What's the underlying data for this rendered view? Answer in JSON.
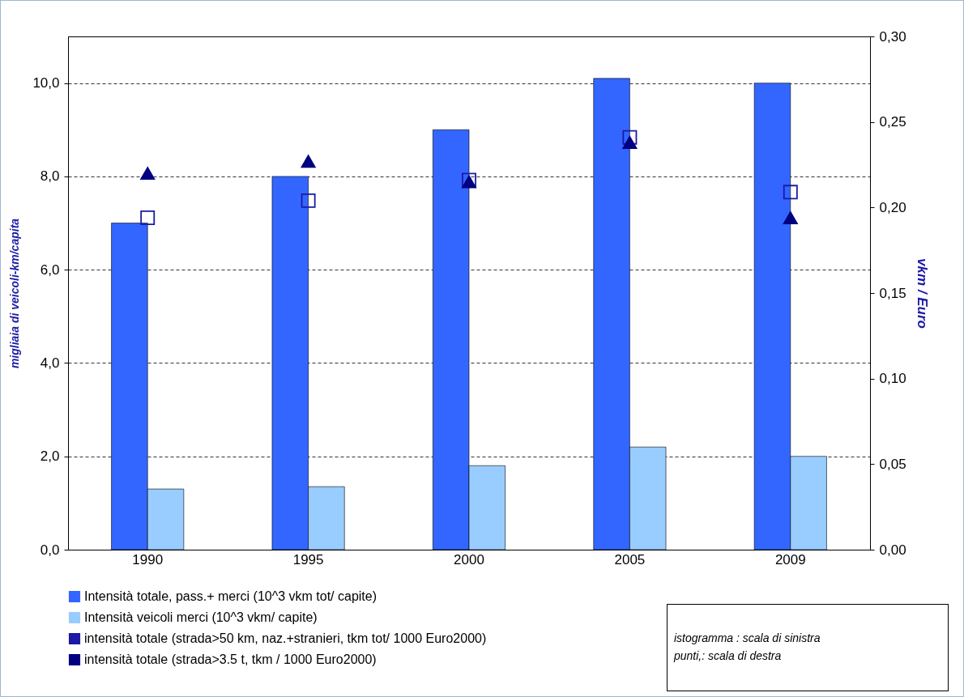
{
  "chart_data": {
    "type": "bar",
    "categories": [
      "1990",
      "1995",
      "2000",
      "2005",
      "2009"
    ],
    "ylabel": "migliaia di veicoli-km/capita",
    "y2label": "vkm  / Euro",
    "ylim": [
      0,
      11
    ],
    "yticks": [
      {
        "value": 0,
        "label": "0,0"
      },
      {
        "value": 2,
        "label": "2,0"
      },
      {
        "value": 4,
        "label": "4,0"
      },
      {
        "value": 6,
        "label": "6,0"
      },
      {
        "value": 8,
        "label": "8,0"
      },
      {
        "value": 10,
        "label": "10,0"
      }
    ],
    "y2lim": [
      0,
      0.3
    ],
    "y2ticks": [
      {
        "value": 0,
        "label": "0,00"
      },
      {
        "value": 0.05,
        "label": "0,05"
      },
      {
        "value": 0.1,
        "label": "0,10"
      },
      {
        "value": 0.15,
        "label": "0,15"
      },
      {
        "value": 0.2,
        "label": "0,20"
      },
      {
        "value": 0.25,
        "label": "0,25"
      },
      {
        "value": 0.3,
        "label": "0,30"
      }
    ],
    "grid": "y",
    "legend": "bottom",
    "series": [
      {
        "name": "Intensità totale, pass.+ merci  (10^3 vkm tot/ capite)",
        "type": "bar",
        "color": "#3366ff",
        "values": [
          7.0,
          8.0,
          9.0,
          10.1,
          10.0
        ]
      },
      {
        "name": "Intensità veicoli merci  (10^3 vkm/ capite)",
        "type": "bar",
        "color": "#99ccff",
        "values": [
          1.3,
          1.35,
          1.8,
          2.2,
          2.0
        ]
      },
      {
        "name": "intensità totale (strada>50 km, naz.+stranieri, tkm tot/ 1000 Euro2000)",
        "type": "scatter",
        "axis": "y2",
        "marker": "square",
        "color": "#1a1aa6",
        "values": [
          0.194,
          0.204,
          0.216,
          0.241,
          0.209
        ]
      },
      {
        "name": "intensità totale (strada>3.5 t, tkm / 1000 Euro2000)",
        "type": "scatter",
        "axis": "y2",
        "marker": "triangle",
        "color": "#000080",
        "values": [
          0.22,
          0.227,
          0.215,
          0.238,
          0.194
        ]
      }
    ],
    "annotations": [
      "istogramma : scala di sinistra\npunti,: scala di destra"
    ]
  }
}
